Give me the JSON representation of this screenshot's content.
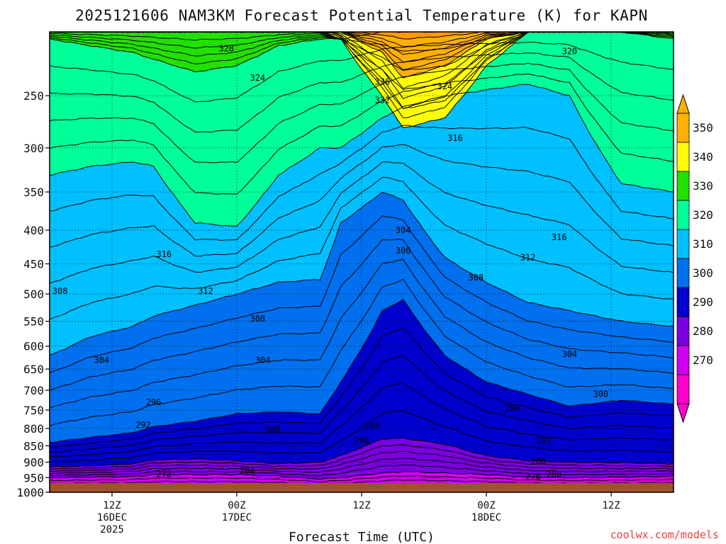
{
  "chart_data": {
    "type": "cross-section",
    "title": "2025121606 NAM3KM Forecast Potential Temperature (K) for KAPN",
    "variable": "Potential Temperature (K)",
    "model": "NAM3KM",
    "station": "KAPN",
    "init": "2025121606",
    "xlabel": "Forecast Time (UTC)",
    "ylabel": "",
    "x_range_hours": [
      0,
      60
    ],
    "y_range_hPa": [
      1000,
      200
    ],
    "y_scale": "log-pressure",
    "y_ticks": [
      250,
      300,
      350,
      400,
      450,
      500,
      550,
      600,
      650,
      700,
      750,
      800,
      850,
      900,
      950,
      1000
    ],
    "x_ticks": [
      {
        "hour": 6,
        "lines": [
          "12Z",
          "16DEC",
          "2025"
        ]
      },
      {
        "hour": 18,
        "lines": [
          "00Z",
          "17DEC"
        ]
      },
      {
        "hour": 30,
        "lines": [
          "12Z"
        ]
      },
      {
        "hour": 42,
        "lines": [
          "00Z",
          "18DEC"
        ]
      },
      {
        "hour": 54,
        "lines": [
          "12Z"
        ]
      }
    ],
    "grid": true,
    "colorbar": {
      "position": "right",
      "labels": [
        "350",
        "340",
        "330",
        "320",
        "310",
        "300",
        "290",
        "280",
        "270"
      ],
      "bins": [
        {
          "lo": 340,
          "hi": 350,
          "color": "#ffb000"
        },
        {
          "lo": 330,
          "hi": 340,
          "color": "#ffff00"
        },
        {
          "lo": 320,
          "hi": 330,
          "color": "#22e000"
        },
        {
          "lo": 310,
          "hi": 320,
          "color": "#00ff99"
        },
        {
          "lo": 300,
          "hi": 310,
          "color": "#00c0ff"
        },
        {
          "lo": 290,
          "hi": 300,
          "color": "#0070ee"
        },
        {
          "lo": 280,
          "hi": 290,
          "color": "#0000cc"
        },
        {
          "lo": 270,
          "hi": 280,
          "color": "#7a00e0"
        },
        {
          "lo": 260,
          "hi": 270,
          "color": "#d000f0"
        },
        {
          "lo": 250,
          "hi": 260,
          "color": "#ff00cc"
        }
      ]
    },
    "layer_boundaries": [
      {
        "theta": 270,
        "color": "#d000f0",
        "pressures_hPa": [
          950,
          948,
          946,
          940,
          940,
          940,
          945,
          955,
          950,
          935,
          930,
          935,
          940,
          948,
          950,
          948,
          945
        ]
      },
      {
        "theta": 280,
        "color": "#7a00e0",
        "pressures_hPa": [
          915,
          912,
          905,
          893,
          890,
          895,
          905,
          900,
          880,
          830,
          828,
          845,
          880,
          895,
          900,
          902,
          905
        ]
      },
      {
        "theta": 290,
        "color": "#0000cc",
        "pressures_hPa": [
          840,
          825,
          812,
          795,
          780,
          760,
          755,
          760,
          680,
          530,
          510,
          620,
          680,
          710,
          740,
          725,
          735
        ]
      },
      {
        "theta": 300,
        "color": "#0070ee",
        "pressures_hPa": [
          620,
          580,
          560,
          540,
          520,
          500,
          480,
          475,
          390,
          350,
          360,
          440,
          480,
          515,
          530,
          550,
          560
        ]
      },
      {
        "theta": 310,
        "color": "#00c0ff",
        "pressures_hPa": [
          330,
          320,
          315,
          320,
          390,
          395,
          330,
          300,
          300,
          270,
          260,
          250,
          245,
          240,
          250,
          340,
          350
        ]
      },
      {
        "theta": 320,
        "color": "#00ff99",
        "pressures_hPa": [
          205,
          210,
          215,
          220,
          230,
          225,
          210,
          205,
          205,
          200,
          200,
          200,
          200,
          200,
          200,
          200,
          205
        ]
      },
      {
        "theta": 330,
        "color": "#22e000",
        "pressures_hPa": [
          200,
          200,
          200,
          200,
          200,
          200,
          200,
          200,
          205,
          250,
          280,
          270,
          225,
          200,
          200,
          200,
          200
        ]
      },
      {
        "theta": 340,
        "color": "#ffff00",
        "pressures_hPa": [
          200,
          200,
          200,
          200,
          200,
          200,
          200,
          200,
          200,
          215,
          235,
          225,
          205,
          200,
          200,
          200,
          200
        ]
      },
      {
        "theta": 350,
        "color": "#ffb000",
        "pressures_hPa": [
          200,
          200,
          200,
          200,
          200,
          200,
          200,
          200,
          200,
          202,
          205,
          203,
          200,
          200,
          200,
          200,
          200
        ]
      }
    ],
    "boundary_hours": [
      0,
      4,
      8,
      10,
      14,
      18,
      22,
      26,
      28,
      32,
      34,
      38,
      42,
      46,
      50,
      55,
      60
    ],
    "contour_labels": [
      {
        "text": "328",
        "hour": 17.0,
        "p": 212
      },
      {
        "text": "324",
        "hour": 20.0,
        "p": 235
      },
      {
        "text": "320",
        "hour": 50.0,
        "p": 214
      },
      {
        "text": "336",
        "hour": 32.0,
        "p": 238
      },
      {
        "text": "332",
        "hour": 32.0,
        "p": 254
      },
      {
        "text": "324",
        "hour": 38.0,
        "p": 242
      },
      {
        "text": "316",
        "hour": 39.0,
        "p": 290
      },
      {
        "text": "316",
        "hour": 11.0,
        "p": 435
      },
      {
        "text": "316",
        "hour": 49.0,
        "p": 410
      },
      {
        "text": "312",
        "hour": 15.0,
        "p": 495
      },
      {
        "text": "312",
        "hour": 46.0,
        "p": 440
      },
      {
        "text": "308",
        "hour": 1.0,
        "p": 495
      },
      {
        "text": "308",
        "hour": 20.0,
        "p": 545
      },
      {
        "text": "308",
        "hour": 41.0,
        "p": 472
      },
      {
        "text": "304",
        "hour": 5.0,
        "p": 630
      },
      {
        "text": "304",
        "hour": 20.5,
        "p": 630
      },
      {
        "text": "304",
        "hour": 34.0,
        "p": 400
      },
      {
        "text": "304",
        "hour": 50.0,
        "p": 617
      },
      {
        "text": "300",
        "hour": 34.0,
        "p": 430
      },
      {
        "text": "300",
        "hour": 21.5,
        "p": 803
      },
      {
        "text": "300",
        "hour": 53.0,
        "p": 710
      },
      {
        "text": "296",
        "hour": 10.0,
        "p": 730
      },
      {
        "text": "296",
        "hour": 44.5,
        "p": 745
      },
      {
        "text": "292",
        "hour": 9.0,
        "p": 790
      },
      {
        "text": "292",
        "hour": 47.5,
        "p": 835
      },
      {
        "text": "288",
        "hour": 31.0,
        "p": 793
      },
      {
        "text": "288",
        "hour": 47.0,
        "p": 897
      },
      {
        "text": "280",
        "hour": 30.0,
        "p": 835
      },
      {
        "text": "280",
        "hour": 48.5,
        "p": 940
      },
      {
        "text": "284",
        "hour": 19.0,
        "p": 927
      },
      {
        "text": "276",
        "hour": 46.5,
        "p": 947
      },
      {
        "text": "272",
        "hour": 11.0,
        "p": 938
      }
    ],
    "ground_color": "#a0522d",
    "ground_top_hPa": 968
  },
  "credit": "coolwx.com/models"
}
